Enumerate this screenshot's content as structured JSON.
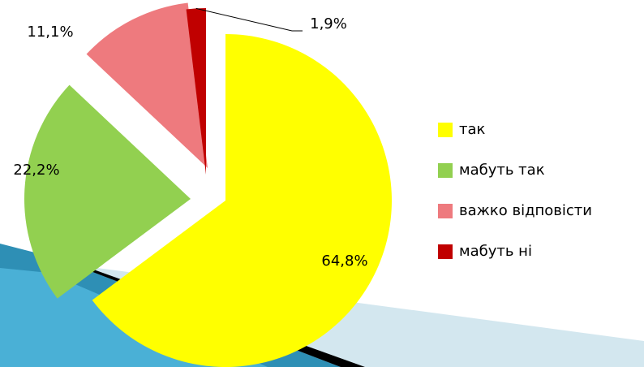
{
  "chart_data": {
    "type": "pie",
    "categories": [
      "так",
      "мабуть так",
      "важко відповісти",
      "мабуть ні"
    ],
    "values": [
      64.8,
      22.2,
      11.1,
      1.9
    ],
    "value_labels": [
      "64,8%",
      "22,2%",
      "11,1%",
      "1,9%"
    ],
    "colors": [
      "#ffff00",
      "#92d050",
      "#ee7a7e",
      "#c00000"
    ],
    "legend": "right"
  }
}
